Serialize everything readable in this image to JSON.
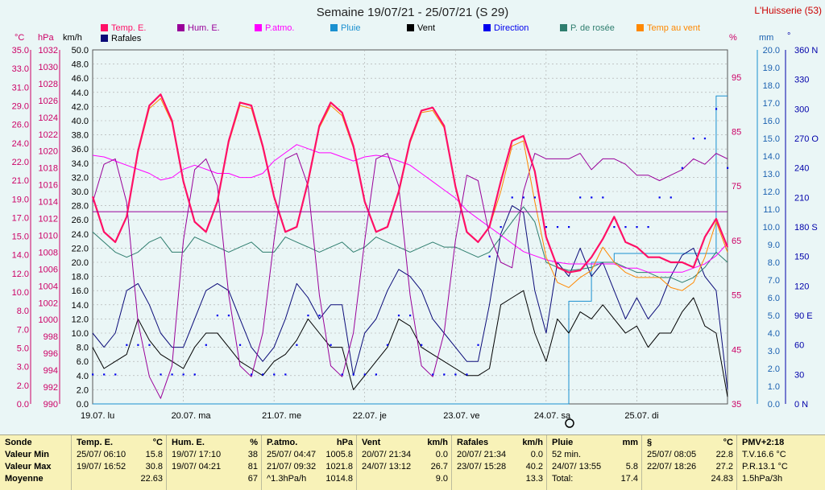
{
  "title": "Semaine 19/07/21 - 25/07/21 (S 29)",
  "station": "L'Huisserie (53)",
  "colors": {
    "temp": "#ff1066",
    "hum": "#990099",
    "patmo": "#ff00ff",
    "pluie": "#1a90d0",
    "vent": "#000000",
    "direction": "#0000ee",
    "rosee": "#2e7d6e",
    "tempvent": "#ff8800",
    "rafales": "#0a0a78",
    "grid": "#9a9a9a",
    "bg": "#eaf6f6"
  },
  "legend": [
    {
      "key": "temp",
      "label": "Temp. E.",
      "color": "#ff1066"
    },
    {
      "key": "hum",
      "label": "Hum. E.",
      "color": "#990099"
    },
    {
      "key": "patmo",
      "label": "P.atmo.",
      "color": "#ff00ff"
    },
    {
      "key": "pluie",
      "label": "Pluie",
      "color": "#1a90d0"
    },
    {
      "key": "vent",
      "label": "Vent",
      "color": "#000000"
    },
    {
      "key": "direction",
      "label": "Direction",
      "color": "#0000ee"
    },
    {
      "key": "rosee",
      "label": "P. de rosée",
      "color": "#2e7d6e"
    },
    {
      "key": "tempvent",
      "label": "Temp au vent",
      "color": "#ff8800"
    },
    {
      "key": "rafales",
      "label": "Rafales",
      "color": "#0a0a78"
    }
  ],
  "axes": {
    "temp": {
      "unit": "°C",
      "ticks": [
        "35.0",
        "33.0",
        "31.0",
        "29.0",
        "26.0",
        "24.0",
        "22.0",
        "21.0",
        "19.0",
        "17.0",
        "15.0",
        "14.0",
        "12.0",
        "10.0",
        "8.0",
        "7.0",
        "5.0",
        "3.0",
        "2.0",
        "0.0"
      ]
    },
    "pression": {
      "unit": "hPa",
      "ticks": [
        "1032",
        "1030",
        "1028",
        "1026",
        "1024",
        "1022",
        "1020",
        "1018",
        "1016",
        "1014",
        "1012",
        "1010",
        "1008",
        "1006",
        "1004",
        "1002",
        "1000",
        "998",
        "996",
        "994",
        "992",
        "990"
      ]
    },
    "vent": {
      "unit": "km/h",
      "ticks": [
        "50.0",
        "48.0",
        "46.0",
        "44.0",
        "42.0",
        "40.0",
        "38.0",
        "36.0",
        "34.0",
        "32.0",
        "30.0",
        "28.0",
        "26.0",
        "24.0",
        "22.0",
        "20.0",
        "18.0",
        "16.0",
        "14.0",
        "12.0",
        "10.0",
        "8.0",
        "6.0",
        "4.0",
        "2.0",
        "0.0"
      ]
    },
    "humidite": {
      "unit": "%",
      "ticks": [
        "95",
        "85",
        "75",
        "65",
        "55",
        "45",
        "35"
      ]
    },
    "pluie": {
      "unit": "mm",
      "ticks": [
        "20.0",
        "19.0",
        "18.0",
        "17.0",
        "16.0",
        "15.0",
        "14.0",
        "13.0",
        "12.0",
        "11.0",
        "10.0",
        "9.0",
        "8.0",
        "7.0",
        "6.0",
        "5.0",
        "4.0",
        "3.0",
        "2.0",
        "1.0",
        "0.0"
      ]
    },
    "direction": {
      "unit": "°",
      "ticks": [
        "360 N",
        "330",
        "300",
        "270 O",
        "240",
        "210",
        "180 S",
        "150",
        "120",
        "90 E",
        "60",
        "30",
        "0 N"
      ]
    },
    "days": [
      "19.07. lu",
      "20.07. ma",
      "21.07. me",
      "22.07. je",
      "23.07. ve",
      "24.07. sa",
      "25.07. di"
    ]
  },
  "chart_data": {
    "type": "line",
    "title": "Semaine 19/07/21 - 25/07/21 (S 29)",
    "x": "hours since 19/07/21 00:00, every 3 h",
    "series": [
      {
        "name": "Temp. E.",
        "axis": "°C",
        "values": [
          20.5,
          17,
          16,
          18.5,
          25,
          29.5,
          30.6,
          28,
          22,
          18,
          17,
          20,
          26,
          29.8,
          29.5,
          25.5,
          20.5,
          17,
          17.5,
          22,
          27.5,
          29.8,
          28.8,
          25.5,
          20,
          17,
          17.5,
          21,
          26,
          29,
          29.3,
          27.5,
          21.5,
          17,
          16,
          17.5,
          22,
          26,
          26.5,
          23,
          16.5,
          13.5,
          13,
          13.2,
          14.5,
          16.3,
          18.5,
          16,
          15.5,
          14.5,
          14.5,
          14,
          14,
          13.5,
          16.5,
          18.3,
          15.5
        ]
      },
      {
        "name": "Temp au vent",
        "axis": "°C",
        "values": [
          20.5,
          17,
          16,
          18.5,
          24.8,
          29.2,
          30.2,
          27.8,
          22,
          18,
          17,
          20,
          25.8,
          29.5,
          29.2,
          25.3,
          20.5,
          17,
          17.5,
          21.8,
          27.3,
          29.5,
          28.5,
          25.3,
          20,
          17,
          17.5,
          20.8,
          25.8,
          28.8,
          29,
          27.3,
          21.5,
          17,
          16,
          17.5,
          21,
          25.5,
          26,
          20,
          14.5,
          12,
          11.5,
          12.5,
          13.2,
          15.5,
          14,
          13,
          12.5,
          12.5,
          12.5,
          11.5,
          11.2,
          12,
          14.5,
          18,
          15
        ]
      },
      {
        "name": "Hum. E.",
        "axis": "%",
        "values": [
          72,
          79,
          80,
          72,
          50,
          40,
          36,
          42,
          65,
          78,
          80,
          75,
          55,
          42,
          40,
          48,
          65,
          80,
          81,
          75,
          55,
          42,
          40,
          48,
          65,
          80,
          81,
          75,
          55,
          42,
          40,
          48,
          65,
          77,
          76,
          66,
          61,
          60,
          74,
          81,
          80,
          80,
          80,
          81,
          78,
          80,
          80,
          79,
          77,
          77,
          76,
          77,
          78,
          80,
          79,
          81,
          80
        ]
      },
      {
        "name": "P.atmo.",
        "axis": "hPa",
        "values": [
          1020.2,
          1020,
          1019.5,
          1019,
          1018.5,
          1018,
          1017.2,
          1017.5,
          1018.5,
          1019,
          1018.5,
          1018,
          1018,
          1017.5,
          1017.5,
          1018,
          1019.5,
          1020.5,
          1021.5,
          1021,
          1020.5,
          1020.5,
          1020,
          1019.5,
          1020,
          1020.2,
          1020,
          1019.5,
          1019,
          1018,
          1017,
          1016,
          1015,
          1013.5,
          1012.5,
          1011.5,
          1010.5,
          1009.5,
          1008.5,
          1008,
          1007.5,
          1007.2,
          1007,
          1007,
          1007,
          1007,
          1007,
          1006.5,
          1006.5,
          1006,
          1006,
          1006,
          1006,
          1006.5,
          1007,
          1008,
          1009.5
        ]
      },
      {
        "name": "P. de rosée",
        "axis": "°C",
        "values": [
          17,
          16,
          15,
          14.5,
          15,
          16,
          16.5,
          15,
          15,
          16.5,
          16,
          15.5,
          15,
          15.5,
          16,
          15,
          15,
          16.5,
          16,
          15.5,
          15,
          15.5,
          16,
          15,
          15.5,
          16.5,
          16,
          15.5,
          15,
          15.5,
          16,
          15.5,
          15.5,
          15,
          14.5,
          15,
          16.5,
          18,
          19.5,
          18,
          14,
          13.5,
          13.2,
          13.3,
          13.5,
          14,
          14,
          13.5,
          13,
          13,
          12.5,
          12.5,
          12,
          12.5,
          13.5,
          15,
          14
        ]
      },
      {
        "name": "Vent",
        "axis": "km/h",
        "values": [
          8,
          5,
          6,
          7,
          12,
          9,
          7,
          6,
          5,
          8,
          10,
          10,
          8,
          6,
          5,
          4,
          6,
          7,
          9,
          12,
          10,
          8,
          8,
          2,
          4,
          6,
          8,
          12,
          11,
          8,
          7,
          6,
          5,
          4,
          4,
          5,
          14,
          15,
          16,
          10,
          6,
          12,
          10,
          13,
          12,
          14,
          12,
          10,
          11,
          8,
          10,
          10,
          13,
          15,
          11,
          10,
          1
        ]
      },
      {
        "name": "Rafales",
        "axis": "km/h",
        "values": [
          10,
          8,
          10,
          16,
          17,
          14,
          10,
          8,
          8,
          12,
          16,
          17,
          16,
          12,
          8,
          6,
          8,
          12,
          17,
          15,
          12,
          14,
          14,
          4,
          10,
          12,
          16,
          19,
          18,
          16,
          12,
          10,
          8,
          6,
          6,
          14,
          24,
          28,
          27,
          16,
          10,
          20,
          18,
          22,
          18,
          20,
          16,
          12,
          15,
          12,
          14,
          18,
          21,
          22,
          18,
          16,
          2
        ]
      },
      {
        "name": "Pluie",
        "axis": "mm",
        "values": [
          0,
          0,
          0,
          0,
          0,
          0,
          0,
          0,
          0,
          0,
          0,
          0,
          0,
          0,
          0,
          0,
          0,
          0,
          0,
          0,
          0,
          0,
          0,
          0,
          0,
          0,
          0,
          0,
          0,
          0,
          0,
          0,
          0,
          0,
          0,
          0,
          0,
          0,
          0,
          0,
          0,
          0,
          5.8,
          5.8,
          8,
          8,
          8.5,
          8.5,
          8.5,
          8.5,
          8.5,
          8.5,
          8.5,
          8.5,
          8.5,
          17.4,
          17.4
        ]
      },
      {
        "name": "Direction",
        "axis": "°",
        "values": [
          30,
          30,
          30,
          60,
          60,
          60,
          30,
          30,
          30,
          30,
          60,
          90,
          90,
          60,
          30,
          30,
          30,
          30,
          60,
          90,
          90,
          60,
          30,
          30,
          30,
          30,
          60,
          90,
          90,
          60,
          30,
          30,
          30,
          30,
          60,
          150,
          180,
          210,
          210,
          210,
          180,
          180,
          180,
          210,
          210,
          210,
          180,
          180,
          180,
          180,
          210,
          210,
          240,
          270,
          270,
          300,
          240
        ]
      }
    ],
    "ylim": {
      "temp": [
        0,
        35
      ],
      "pression": [
        990,
        1033
      ],
      "vent": [
        0,
        50
      ],
      "humidite": [
        35,
        100
      ],
      "pluie": [
        0,
        20
      ],
      "direction": [
        0,
        360
      ]
    },
    "grid": true,
    "legend_position": "top"
  },
  "table": {
    "sonde": {
      "head": "Sonde",
      "rows": [
        "Valeur Min",
        "Valeur Max",
        "Moyenne"
      ]
    },
    "temp": {
      "head": "Temp. E.",
      "unit": "°C",
      "min_date": "25/07/ 06:10",
      "min": "15.8",
      "max_date": "19/07/ 16:52",
      "max": "30.8",
      "avg": "22.63"
    },
    "hum": {
      "head": "Hum. E.",
      "unit": "%",
      "min_date": "19/07/ 17:10",
      "min": "38",
      "max_date": "19/07/ 04:21",
      "max": "81",
      "avg": "67"
    },
    "patmo": {
      "head": "P.atmo.",
      "unit": "hPa",
      "min_date": "25/07/ 04:47",
      "min": "1005.8",
      "max_date": "21/07/ 09:32",
      "max": "1021.8",
      "avg_label": "^1.3hPa/h",
      "avg": "1014.8"
    },
    "vent": {
      "head": "Vent",
      "unit": "km/h",
      "min_date": "20/07/ 21:34",
      "min": "0.0",
      "max_date": "24/07/ 13:12",
      "max": "26.7",
      "avg": "9.0"
    },
    "rafales": {
      "head": "Rafales",
      "unit": "km/h",
      "min_date": "20/07/ 21:34",
      "min": "0.0",
      "max_date": "23/07/ 15:28",
      "max": "40.2",
      "avg": "13.3"
    },
    "pluie": {
      "head": "Pluie",
      "unit": "mm",
      "r1": "52 min.",
      "r1v": "",
      "r2": "24/07/ 13:55",
      "r2v": "5.8",
      "r3": "Total:",
      "r3v": "17.4"
    },
    "rosee": {
      "head": "§",
      "unit": "°C",
      "min_date": "25/07/ 08:05",
      "min": "22.8",
      "max_date": "22/07/ 18:26",
      "max": "27.2",
      "avg": "24.83"
    },
    "pmv": {
      "head": "PMV+2:18",
      "r1": "T.V.16.6 °C",
      "r2": "P.R.13.1 °C",
      "r3": "1.5hPa/3h"
    }
  }
}
